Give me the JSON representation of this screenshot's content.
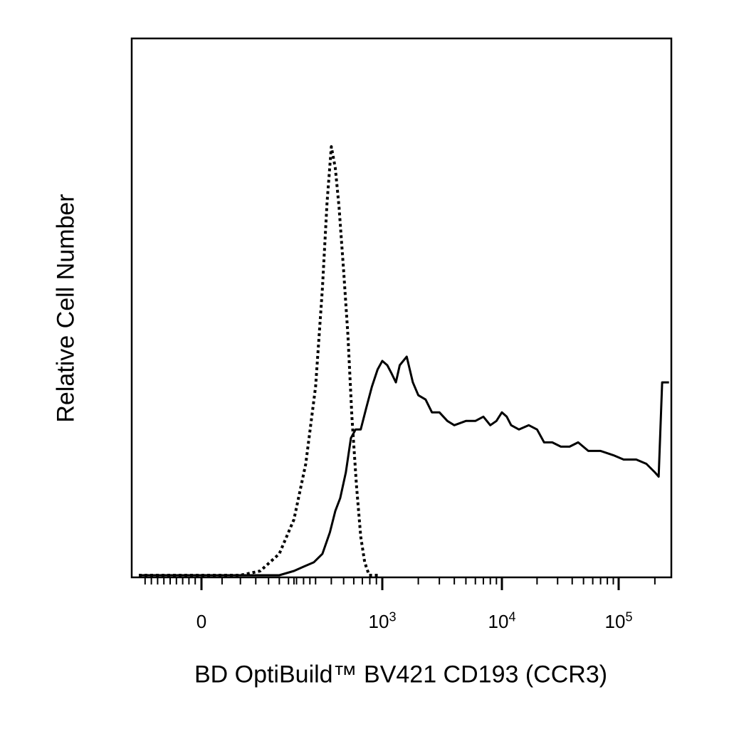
{
  "chart_data": {
    "type": "line",
    "title": "",
    "xlabel": "BD OptiBuild™ BV421 CD193 (CCR3)",
    "ylabel": "Relative Cell Number",
    "x_scale": "biexponential",
    "xlim": [
      -300,
      262144
    ],
    "ylim": [
      0,
      100
    ],
    "grid": false,
    "legend": "none",
    "x_ticks": [
      {
        "value": 0,
        "base": "0",
        "exp": ""
      },
      {
        "value": 1000,
        "base": "10",
        "exp": "3"
      },
      {
        "value": 10000,
        "base": "10",
        "exp": "4"
      },
      {
        "value": 100000,
        "base": "10",
        "exp": "5"
      }
    ],
    "series": [
      {
        "style": "dotted",
        "color": "#000000",
        "x": [
          -300,
          0,
          60,
          100,
          150,
          200,
          250,
          300,
          340,
          370,
          400,
          430,
          460,
          500,
          540,
          580,
          630,
          680,
          730,
          790,
          860,
          930
        ],
        "y": [
          0,
          0,
          0,
          1,
          5,
          13,
          26,
          44,
          67,
          87,
          100,
          95,
          86,
          71,
          56,
          37,
          21,
          9,
          3,
          0,
          0,
          0
        ]
      },
      {
        "style": "solid",
        "color": "#000000",
        "x": [
          -300,
          0,
          150,
          200,
          240,
          290,
          340,
          390,
          430,
          470,
          520,
          570,
          620,
          680,
          750,
          830,
          920,
          1000,
          1100,
          1200,
          1300,
          1400,
          1600,
          1800,
          2000,
          2300,
          2600,
          3000,
          3500,
          4000,
          5000,
          6000,
          7000,
          8000,
          9000,
          10000,
          11000,
          12000,
          14000,
          17000,
          20000,
          23000,
          27000,
          32000,
          38000,
          45000,
          55000,
          70000,
          90000,
          110000,
          140000,
          170000,
          200000,
          215000,
          230000,
          262144
        ],
        "y": [
          0,
          0,
          0,
          1,
          2,
          3,
          5,
          10,
          15,
          18,
          24,
          32,
          34,
          34,
          39,
          44,
          48,
          50,
          49,
          47,
          45,
          49,
          51,
          45,
          42,
          41,
          38,
          38,
          36,
          35,
          36,
          36,
          37,
          35,
          36,
          38,
          37,
          35,
          34,
          35,
          34,
          31,
          31,
          30,
          30,
          31,
          29,
          29,
          28,
          27,
          27,
          26,
          24,
          23,
          45,
          45
        ]
      }
    ]
  }
}
